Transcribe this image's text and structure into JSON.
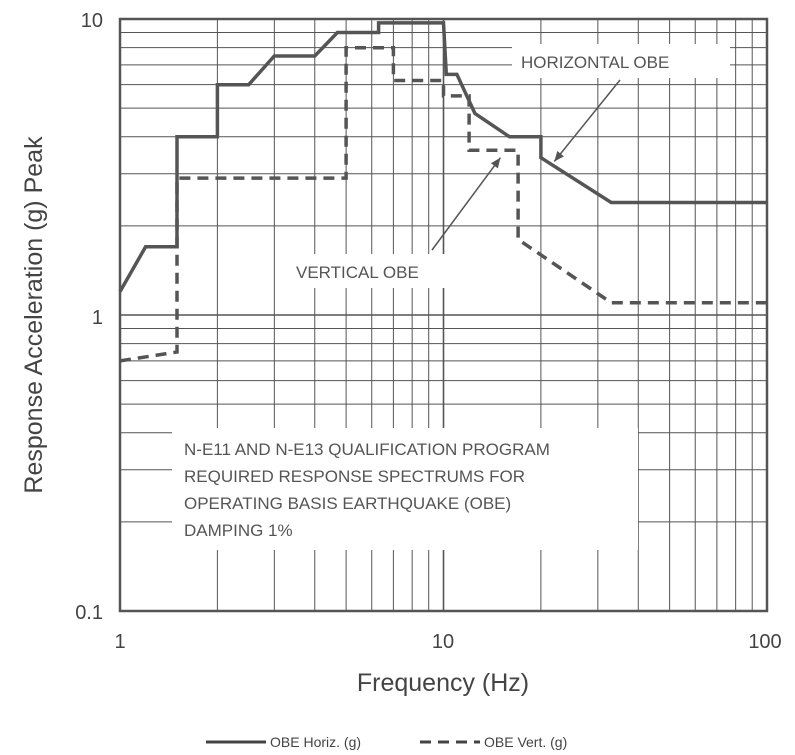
{
  "chart_data": {
    "type": "line",
    "title": "",
    "xlabel": "Frequency (Hz)",
    "ylabel": "Response Acceleration (g) Peak",
    "x_scale": "log",
    "y_scale": "log",
    "xlim": [
      1,
      100
    ],
    "ylim": [
      0.1,
      10
    ],
    "grid": true,
    "x_ticks": [
      {
        "value": 1,
        "label": "1"
      },
      {
        "value": 10,
        "label": "10"
      },
      {
        "value": 100,
        "label": "100"
      }
    ],
    "y_ticks": [
      {
        "value": 0.1,
        "label": "0.1"
      },
      {
        "value": 1,
        "label": "1"
      },
      {
        "value": 10,
        "label": "10"
      }
    ],
    "legend_position": "bottom",
    "series": [
      {
        "name": "OBE Horiz. (g)",
        "style": "solid",
        "color": "#555555",
        "points": [
          [
            1.0,
            1.2
          ],
          [
            1.2,
            1.7
          ],
          [
            1.5,
            1.7
          ],
          [
            1.5,
            4.0
          ],
          [
            2.0,
            4.0
          ],
          [
            2.0,
            6.0
          ],
          [
            2.5,
            6.0
          ],
          [
            3.0,
            7.5
          ],
          [
            4.0,
            7.5
          ],
          [
            4.7,
            9.0
          ],
          [
            6.3,
            9.0
          ],
          [
            6.3,
            9.7
          ],
          [
            10.0,
            9.7
          ],
          [
            10.2,
            6.5
          ],
          [
            11.0,
            6.5
          ],
          [
            12.5,
            4.8
          ],
          [
            16.0,
            4.0
          ],
          [
            20.0,
            4.0
          ],
          [
            20.0,
            3.4
          ],
          [
            33.0,
            2.4
          ],
          [
            100.0,
            2.4
          ]
        ]
      },
      {
        "name": "OBE Vert. (g)",
        "style": "dashed",
        "color": "#555555",
        "points": [
          [
            1.0,
            0.7
          ],
          [
            1.5,
            0.75
          ],
          [
            1.5,
            2.9
          ],
          [
            5.0,
            2.9
          ],
          [
            5.0,
            8.0
          ],
          [
            7.0,
            8.0
          ],
          [
            7.0,
            6.2
          ],
          [
            10.0,
            6.2
          ],
          [
            10.0,
            5.5
          ],
          [
            12.0,
            5.5
          ],
          [
            12.0,
            3.6
          ],
          [
            17.0,
            3.6
          ],
          [
            17.0,
            1.8
          ],
          [
            33.0,
            1.1
          ],
          [
            100.0,
            1.1
          ]
        ]
      }
    ],
    "annotations": [
      {
        "id": "horizontal",
        "text": "HORIZONTAL OBE",
        "arrow_to": [
          22.0,
          3.3
        ]
      },
      {
        "id": "vertical",
        "text": "VERTICAL OBE",
        "arrow_to": [
          15.0,
          3.4
        ]
      },
      {
        "id": "note",
        "lines": [
          "N-E11 AND N-E13 QUALIFICATION PROGRAM",
          "REQUIRED RESPONSE SPECTRUMS FOR",
          "OPERATING BASIS EARTHQUAKE (OBE)",
          "DAMPING 1%"
        ]
      }
    ]
  }
}
